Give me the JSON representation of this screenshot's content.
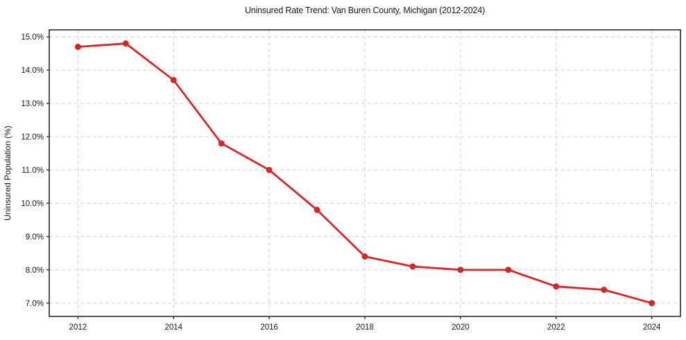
{
  "chart_data": {
    "type": "line",
    "title": "Uninsured Rate Trend: Van Buren County, Michigan (2012-2024)",
    "xlabel": "",
    "ylabel": "Uninsured Population (%)",
    "x": [
      2012,
      2013,
      2014,
      2015,
      2016,
      2017,
      2018,
      2019,
      2020,
      2021,
      2022,
      2023,
      2024
    ],
    "values": [
      14.7,
      14.8,
      13.7,
      11.8,
      11.0,
      9.8,
      8.4,
      8.1,
      8.0,
      8.0,
      7.5,
      7.4,
      7.0
    ],
    "xticks": [
      2012,
      2014,
      2016,
      2018,
      2020,
      2022,
      2024
    ],
    "xtick_labels": [
      "2012",
      "2014",
      "2016",
      "2018",
      "2020",
      "2022",
      "2024"
    ],
    "yticks": [
      7,
      8,
      9,
      10,
      11,
      12,
      13,
      14,
      15
    ],
    "ytick_labels": [
      "7.0%",
      "8.0%",
      "9.0%",
      "10.0%",
      "11.0%",
      "12.0%",
      "13.0%",
      "14.0%",
      "15.0%"
    ],
    "xlim": [
      2011.4,
      2024.6
    ],
    "ylim": [
      6.6,
      15.21
    ],
    "grid": true,
    "grid_style": "dashed",
    "legend": "none",
    "marker": "circle",
    "line_color": "#d62728",
    "grid_color": "#cccccc",
    "text_color": "#1a1a1a",
    "background": "#ffffff"
  }
}
